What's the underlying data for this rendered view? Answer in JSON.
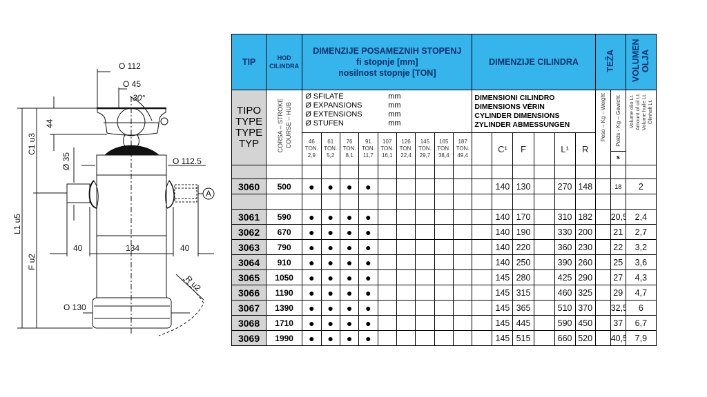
{
  "drawing": {
    "labels": {
      "d112": "O 112",
      "d45": "O 45",
      "angle": "30°",
      "h44": "44",
      "d35": "Ø 35",
      "d1125": "O 112.5",
      "w40_left": "40",
      "w134": "134",
      "w40_right": "40",
      "d130": "O 130",
      "radius": "R u2",
      "detail": "A",
      "l1": "L1 u5",
      "c1": "C1 u3",
      "f": "F u2"
    }
  },
  "table": {
    "header": {
      "tip": "TIP",
      "hod": "HOD CILINDRA",
      "stages_title": [
        "DIMENZIJE POSAMEZNIH STOPENJ",
        "fi stopnje [mm]",
        "nosilnost stopnje [TON]"
      ],
      "dims_title": "DIMENZIJE CILINDRA",
      "weight": "TEŽA",
      "volume": "VOLUMEN OLJA"
    },
    "subheader": {
      "type_labels": [
        "TIPO",
        "TYPE",
        "TYPE",
        "TYP"
      ],
      "stroke_labels": [
        "CORSA – STROKE",
        "COURSE – HUB"
      ],
      "stage_lang": [
        {
          "label": "Ø SFILATE",
          "unit": "mm"
        },
        {
          "label": "Ø EXPANSIONS",
          "unit": "mm"
        },
        {
          "label": "Ø EXTENSIONS",
          "unit": "mm"
        },
        {
          "label": "Ø STUFEN",
          "unit": "mm"
        }
      ],
      "dims_lang": [
        "DIMENSIONI CILINDRO",
        "DIMENSIONS VÉRIN",
        "CYLINDER DIMENSIONS",
        "ZYLINDER ABMESSUNGEN"
      ],
      "weight_labels": [
        "Peso – Kg – Weight",
        "Poids - Kg – Gewicht"
      ],
      "weight_unit": "s",
      "volume_labels": [
        "Volume olio Lt.",
        "Amount of oil Lt.",
        "Volume huile Lt.",
        "Ölinhalt Lt."
      ],
      "stages": [
        {
          "dia": "46",
          "unit": "TON.",
          "load": "2,9"
        },
        {
          "dia": "61",
          "unit": "TON.",
          "load": "5,2"
        },
        {
          "dia": "76",
          "unit": "TON.",
          "load": "8,1"
        },
        {
          "dia": "91",
          "unit": "TON.",
          "load": "11,7"
        },
        {
          "dia": "107",
          "unit": "TON.",
          "load": "16,1"
        },
        {
          "dia": "126",
          "unit": "TON.",
          "load": "22,4"
        },
        {
          "dia": "145",
          "unit": "TON.",
          "load": "29,7"
        },
        {
          "dia": "165",
          "unit": "TON.",
          "load": "38,4"
        },
        {
          "dia": "187",
          "unit": "TON.",
          "load": "49,4"
        }
      ],
      "dim_columns": [
        "",
        "C¹",
        "F",
        "",
        "L¹",
        "R"
      ]
    },
    "rows": [
      {
        "blank": true
      },
      {
        "tip": "3060",
        "stroke": "500",
        "stages": [
          1,
          1,
          1,
          1,
          0,
          0,
          0,
          0,
          0
        ],
        "c1": "140",
        "f": "130",
        "l1": "270",
        "r": "148",
        "weight": "18",
        "volume": "2"
      },
      {
        "blank": true
      },
      {
        "tip": "3061",
        "stroke": "590",
        "stages": [
          1,
          1,
          1,
          1,
          0,
          0,
          0,
          0,
          0
        ],
        "c1": "140",
        "f": "170",
        "l1": "310",
        "r": "182",
        "weight": "20,5",
        "volume": "2,4"
      },
      {
        "tip": "3062",
        "stroke": "670",
        "stages": [
          1,
          1,
          1,
          1,
          0,
          0,
          0,
          0,
          0
        ],
        "c1": "140",
        "f": "190",
        "l1": "330",
        "r": "200",
        "weight": "21",
        "volume": "2,7"
      },
      {
        "tip": "3063",
        "stroke": "790",
        "stages": [
          1,
          1,
          1,
          1,
          0,
          0,
          0,
          0,
          0
        ],
        "c1": "140",
        "f": "220",
        "l1": "360",
        "r": "230",
        "weight": "22",
        "volume": "3,2"
      },
      {
        "tip": "3064",
        "stroke": "910",
        "stages": [
          1,
          1,
          1,
          1,
          0,
          0,
          0,
          0,
          0
        ],
        "c1": "140",
        "f": "250",
        "l1": "390",
        "r": "260",
        "weight": "25",
        "volume": "3,6"
      },
      {
        "tip": "3065",
        "stroke": "1050",
        "stages": [
          1,
          1,
          1,
          1,
          0,
          0,
          0,
          0,
          0
        ],
        "c1": "145",
        "f": "280",
        "l1": "425",
        "r": "290",
        "weight": "27",
        "volume": "4,3"
      },
      {
        "tip": "3066",
        "stroke": "1190",
        "stages": [
          1,
          1,
          1,
          1,
          0,
          0,
          0,
          0,
          0
        ],
        "c1": "145",
        "f": "315",
        "l1": "460",
        "r": "325",
        "weight": "29",
        "volume": "4,7"
      },
      {
        "tip": "3067",
        "stroke": "1390",
        "stages": [
          1,
          1,
          1,
          1,
          0,
          0,
          0,
          0,
          0
        ],
        "c1": "145",
        "f": "365",
        "l1": "510",
        "r": "370",
        "weight": "32,5",
        "volume": "6"
      },
      {
        "tip": "3068",
        "stroke": "1710",
        "stages": [
          1,
          1,
          1,
          1,
          0,
          0,
          0,
          0,
          0
        ],
        "c1": "145",
        "f": "445",
        "l1": "590",
        "r": "450",
        "weight": "37",
        "volume": "6,7"
      },
      {
        "tip": "3069",
        "stroke": "1990",
        "stages": [
          1,
          1,
          1,
          1,
          0,
          0,
          0,
          0,
          0
        ],
        "c1": "145",
        "f": "515",
        "l1": "660",
        "r": "520",
        "weight": "40,5",
        "volume": "7,9"
      }
    ],
    "bullet": "●"
  },
  "colors": {
    "header_blue": "#35b5ec",
    "header_text": "#0a2f6a",
    "type_gray": "#d4d4d4"
  }
}
